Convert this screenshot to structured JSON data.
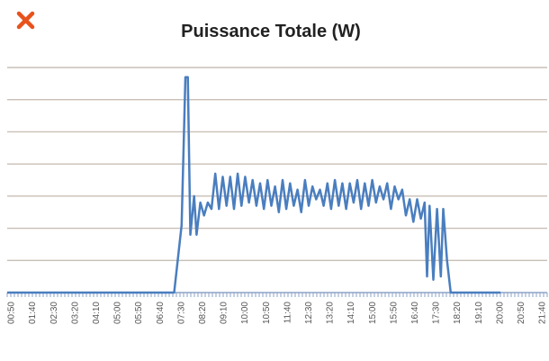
{
  "close_icon": "close-icon",
  "colors": {
    "close": "#e8521c",
    "line": "#4a7ebf",
    "grid": "#c9bfb6",
    "axis": "#8ea3c7"
  },
  "chart_data": {
    "type": "line",
    "title": "Puissance Totale (W)",
    "xlabel": "",
    "ylabel": "",
    "grid": true,
    "legend": "none",
    "ylim": [
      0,
      7
    ],
    "x_tick_labels": [
      "00:50",
      "01:40",
      "02:30",
      "03:20",
      "04:10",
      "05:00",
      "05:50",
      "06:40",
      "07:30",
      "08:20",
      "09:10",
      "10:00",
      "10:50",
      "11:40",
      "12:30",
      "13:20",
      "14:10",
      "15:00",
      "15:50",
      "16:40",
      "17:30",
      "18:20",
      "19:10",
      "20:00",
      "20:50",
      "21:40"
    ],
    "series": [
      {
        "values": [
          [
            0,
            0
          ],
          [
            6.7,
            0
          ],
          [
            7.0,
            2.1
          ],
          [
            7.15,
            6.7
          ],
          [
            7.25,
            6.7
          ],
          [
            7.35,
            1.8
          ],
          [
            7.5,
            3.0
          ],
          [
            7.6,
            1.8
          ],
          [
            7.75,
            2.8
          ],
          [
            7.9,
            2.4
          ],
          [
            8.05,
            2.8
          ],
          [
            8.2,
            2.6
          ],
          [
            8.35,
            3.7
          ],
          [
            8.5,
            2.6
          ],
          [
            8.65,
            3.6
          ],
          [
            8.8,
            2.7
          ],
          [
            8.95,
            3.6
          ],
          [
            9.1,
            2.6
          ],
          [
            9.25,
            3.7
          ],
          [
            9.4,
            2.7
          ],
          [
            9.55,
            3.6
          ],
          [
            9.7,
            2.8
          ],
          [
            9.85,
            3.5
          ],
          [
            10.0,
            2.7
          ],
          [
            10.15,
            3.4
          ],
          [
            10.3,
            2.6
          ],
          [
            10.45,
            3.5
          ],
          [
            10.6,
            2.7
          ],
          [
            10.75,
            3.3
          ],
          [
            10.9,
            2.5
          ],
          [
            11.05,
            3.5
          ],
          [
            11.2,
            2.6
          ],
          [
            11.35,
            3.4
          ],
          [
            11.5,
            2.7
          ],
          [
            11.65,
            3.2
          ],
          [
            11.8,
            2.5
          ],
          [
            11.95,
            3.5
          ],
          [
            12.1,
            2.7
          ],
          [
            12.25,
            3.3
          ],
          [
            12.4,
            2.9
          ],
          [
            12.55,
            3.2
          ],
          [
            12.7,
            2.7
          ],
          [
            12.85,
            3.4
          ],
          [
            13.0,
            2.6
          ],
          [
            13.15,
            3.5
          ],
          [
            13.3,
            2.7
          ],
          [
            13.45,
            3.4
          ],
          [
            13.6,
            2.6
          ],
          [
            13.75,
            3.4
          ],
          [
            13.9,
            2.8
          ],
          [
            14.05,
            3.5
          ],
          [
            14.2,
            2.6
          ],
          [
            14.35,
            3.4
          ],
          [
            14.5,
            2.7
          ],
          [
            14.65,
            3.5
          ],
          [
            14.8,
            2.8
          ],
          [
            14.95,
            3.3
          ],
          [
            15.1,
            2.9
          ],
          [
            15.25,
            3.4
          ],
          [
            15.4,
            2.6
          ],
          [
            15.55,
            3.3
          ],
          [
            15.7,
            2.9
          ],
          [
            15.85,
            3.2
          ],
          [
            16.0,
            2.4
          ],
          [
            16.15,
            2.9
          ],
          [
            16.3,
            2.2
          ],
          [
            16.45,
            2.9
          ],
          [
            16.6,
            2.3
          ],
          [
            16.75,
            2.8
          ],
          [
            16.85,
            0.5
          ],
          [
            16.95,
            2.7
          ],
          [
            17.1,
            0.4
          ],
          [
            17.25,
            2.6
          ],
          [
            17.4,
            0.5
          ],
          [
            17.5,
            2.6
          ],
          [
            17.65,
            1.0
          ],
          [
            17.8,
            0
          ],
          [
            19.8,
            0
          ]
        ]
      }
    ]
  }
}
